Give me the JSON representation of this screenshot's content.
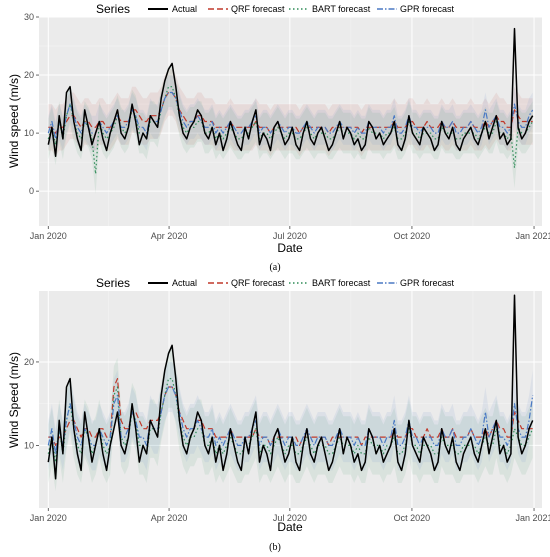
{
  "colors": {
    "actual": "#000000",
    "qrf": "#c0392b",
    "bart": "#2e8b57",
    "gpr": "#4a79c4",
    "panel_bg": "#ebebeb",
    "grid": "#ffffff"
  },
  "legend": {
    "title": "Series",
    "items": [
      {
        "label": "Actual",
        "color": "#000000",
        "dash": "solid"
      },
      {
        "label": "QRF forecast",
        "color": "#c0392b",
        "dash": "longdash"
      },
      {
        "label": "BART forecast",
        "color": "#2e8b57",
        "dash": "dotted"
      },
      {
        "label": "GPR forecast",
        "color": "#4a79c4",
        "dash": "dashdot"
      }
    ]
  },
  "chart_data": [
    {
      "type": "line",
      "panel": "(a)",
      "caption": "(a)",
      "xlabel": "Date",
      "ylabel": "Wind speed (m/s)",
      "x_ticks": [
        "Jan 2020",
        "Apr 2020",
        "Jul 2020",
        "Oct 2020",
        "Jan 2021"
      ],
      "y_ticks": [
        0,
        10,
        20,
        30
      ],
      "xlim": [
        "2019-12-25",
        "2021-01-07"
      ],
      "ylim": [
        -6,
        30
      ],
      "x_range_dates": [
        "2020-01-01",
        "2020-12-31"
      ],
      "bands": [
        "qrf",
        "bart",
        "gpr"
      ],
      "series": [
        {
          "name": "Actual",
          "values": [
            8,
            11,
            6,
            13,
            9,
            17,
            18,
            12,
            9,
            7,
            14,
            11,
            8,
            10,
            12,
            9,
            7,
            10,
            12,
            14,
            10,
            9,
            11,
            15,
            12,
            8,
            10,
            9,
            13,
            12,
            11,
            16,
            19,
            21,
            22,
            18,
            13,
            10,
            9,
            11,
            12,
            14,
            13,
            10,
            9,
            11,
            8,
            10,
            7,
            9,
            12,
            10,
            8,
            7,
            11,
            9,
            12,
            14,
            8,
            10,
            9,
            7,
            11,
            12,
            10,
            8,
            9,
            11,
            8,
            7,
            10,
            12,
            9,
            8,
            10,
            11,
            9,
            7,
            8,
            10,
            12,
            9,
            11,
            10,
            8,
            9,
            7,
            8,
            12,
            11,
            9,
            10,
            8,
            9,
            10,
            12,
            8,
            7,
            9,
            13,
            10,
            9,
            8,
            11,
            10,
            9,
            7,
            8,
            12,
            10,
            9,
            11,
            8,
            7,
            9,
            10,
            11,
            9,
            8,
            10,
            12,
            9,
            11,
            13,
            9,
            10,
            8,
            9,
            28,
            11,
            9,
            10,
            12,
            13
          ]
        },
        {
          "name": "QRF forecast",
          "values": [
            11,
            11,
            10,
            11,
            11,
            12,
            13,
            13,
            12,
            11,
            12,
            12,
            11,
            11,
            12,
            12,
            11,
            11,
            12,
            13,
            12,
            12,
            12,
            14,
            14,
            13,
            12,
            12,
            13,
            13,
            13,
            14,
            16,
            17,
            17,
            16,
            14,
            13,
            12,
            12,
            12,
            13,
            13,
            12,
            12,
            12,
            11,
            11,
            11,
            11,
            12,
            11,
            11,
            11,
            11,
            11,
            11,
            12,
            11,
            11,
            11,
            10,
            11,
            11,
            11,
            11,
            11,
            11,
            11,
            10,
            11,
            11,
            11,
            11,
            11,
            11,
            11,
            10,
            11,
            11,
            11,
            11,
            11,
            11,
            11,
            11,
            10,
            11,
            11,
            11,
            11,
            11,
            11,
            11,
            11,
            12,
            11,
            11,
            11,
            12,
            12,
            11,
            11,
            11,
            12,
            11,
            11,
            11,
            12,
            11,
            11,
            12,
            11,
            11,
            11,
            11,
            12,
            11,
            11,
            11,
            12,
            11,
            12,
            13,
            12,
            12,
            11,
            11,
            14,
            13,
            12,
            12,
            12,
            12
          ]
        },
        {
          "name": "BART forecast",
          "values": [
            9,
            11,
            8,
            12,
            9,
            13,
            15,
            12,
            10,
            9,
            12,
            11,
            9,
            3,
            12,
            10,
            9,
            10,
            11,
            13,
            11,
            10,
            11,
            14,
            13,
            10,
            10,
            9,
            12,
            12,
            11,
            14,
            16,
            18,
            18,
            16,
            13,
            11,
            10,
            11,
            11,
            12,
            12,
            10,
            10,
            11,
            9,
            10,
            9,
            10,
            11,
            10,
            9,
            9,
            10,
            10,
            11,
            12,
            9,
            10,
            10,
            9,
            10,
            11,
            10,
            9,
            10,
            10,
            9,
            9,
            10,
            11,
            10,
            9,
            10,
            10,
            10,
            9,
            9,
            10,
            11,
            10,
            10,
            10,
            9,
            10,
            9,
            9,
            11,
            10,
            10,
            10,
            9,
            10,
            10,
            11,
            9,
            9,
            10,
            12,
            10,
            10,
            9,
            10,
            10,
            10,
            9,
            9,
            11,
            10,
            10,
            10,
            9,
            9,
            10,
            10,
            10,
            10,
            9,
            10,
            11,
            10,
            10,
            12,
            10,
            10,
            9,
            10,
            4,
            11,
            10,
            10,
            11,
            12
          ]
        },
        {
          "name": "GPR forecast",
          "values": [
            10,
            12,
            9,
            12,
            10,
            13,
            15,
            13,
            11,
            10,
            12,
            11,
            10,
            10,
            12,
            11,
            10,
            11,
            12,
            13,
            11,
            11,
            12,
            14,
            13,
            11,
            11,
            10,
            13,
            12,
            12,
            14,
            16,
            17,
            17,
            16,
            14,
            12,
            11,
            12,
            12,
            13,
            12,
            11,
            11,
            12,
            10,
            11,
            10,
            11,
            12,
            11,
            10,
            10,
            11,
            11,
            12,
            13,
            10,
            11,
            11,
            10,
            11,
            12,
            11,
            10,
            11,
            11,
            10,
            10,
            11,
            12,
            11,
            10,
            11,
            11,
            11,
            10,
            10,
            11,
            12,
            11,
            11,
            11,
            10,
            11,
            10,
            10,
            12,
            11,
            11,
            11,
            10,
            11,
            11,
            13,
            10,
            10,
            11,
            13,
            11,
            11,
            10,
            11,
            11,
            11,
            10,
            10,
            12,
            11,
            11,
            12,
            10,
            10,
            11,
            11,
            12,
            11,
            10,
            11,
            14,
            11,
            12,
            13,
            11,
            11,
            10,
            11,
            15,
            12,
            11,
            11,
            13,
            14
          ]
        }
      ]
    },
    {
      "type": "line",
      "panel": "(b)",
      "caption": "(b)",
      "xlabel": "Date",
      "ylabel": "Wind Speed (m/s)",
      "x_ticks": [
        "Jan 2020",
        "Apr 2020",
        "Jul 2020",
        "Oct 2020",
        "Jan 2021"
      ],
      "y_ticks": [
        10,
        20
      ],
      "xlim": [
        "2019-12-25",
        "2021-01-07"
      ],
      "ylim": [
        2.5,
        28.5
      ],
      "x_range_dates": [
        "2020-01-01",
        "2020-12-31"
      ],
      "bands": [
        "bart",
        "gpr"
      ],
      "series": [
        {
          "name": "Actual",
          "values": [
            8,
            11,
            6,
            13,
            9,
            17,
            18,
            12,
            9,
            7,
            14,
            11,
            8,
            10,
            12,
            9,
            7,
            10,
            12,
            14,
            10,
            9,
            11,
            15,
            12,
            8,
            10,
            9,
            13,
            12,
            11,
            16,
            19,
            21,
            22,
            18,
            13,
            10,
            9,
            11,
            12,
            14,
            13,
            10,
            9,
            11,
            8,
            10,
            7,
            9,
            12,
            10,
            8,
            7,
            11,
            9,
            12,
            14,
            8,
            10,
            9,
            7,
            11,
            12,
            10,
            8,
            9,
            11,
            8,
            7,
            10,
            12,
            9,
            8,
            10,
            11,
            9,
            7,
            8,
            10,
            12,
            9,
            11,
            10,
            8,
            9,
            7,
            8,
            12,
            11,
            9,
            10,
            8,
            9,
            10,
            12,
            8,
            7,
            9,
            13,
            10,
            9,
            8,
            11,
            10,
            9,
            7,
            8,
            12,
            10,
            9,
            11,
            8,
            7,
            9,
            10,
            11,
            9,
            8,
            10,
            12,
            9,
            11,
            13,
            9,
            10,
            8,
            9,
            28,
            11,
            9,
            10,
            12,
            13
          ]
        },
        {
          "name": "QRF forecast",
          "values": [
            11,
            11,
            10,
            11,
            11,
            12,
            13,
            13,
            12,
            11,
            12,
            12,
            11,
            11,
            12,
            12,
            11,
            11,
            17,
            18,
            13,
            12,
            12,
            14,
            14,
            13,
            12,
            12,
            13,
            13,
            13,
            14,
            16,
            17,
            17,
            16,
            14,
            13,
            12,
            12,
            12,
            13,
            13,
            12,
            12,
            12,
            11,
            11,
            11,
            11,
            12,
            11,
            11,
            11,
            11,
            11,
            11,
            12,
            11,
            11,
            11,
            10,
            11,
            11,
            11,
            11,
            11,
            11,
            11,
            10,
            11,
            11,
            11,
            11,
            11,
            11,
            11,
            10,
            11,
            11,
            11,
            11,
            11,
            11,
            11,
            11,
            10,
            11,
            11,
            11,
            11,
            11,
            11,
            11,
            11,
            12,
            11,
            11,
            11,
            12,
            12,
            11,
            11,
            11,
            12,
            11,
            11,
            11,
            12,
            11,
            11,
            12,
            11,
            11,
            11,
            11,
            12,
            11,
            11,
            11,
            12,
            11,
            12,
            13,
            12,
            12,
            11,
            11,
            14,
            13,
            12,
            12,
            12,
            12
          ]
        },
        {
          "name": "BART forecast",
          "values": [
            9,
            11,
            8,
            12,
            9,
            13,
            15,
            12,
            10,
            9,
            12,
            11,
            9,
            10,
            12,
            10,
            9,
            10,
            16,
            17,
            11,
            10,
            11,
            14,
            13,
            10,
            10,
            9,
            12,
            12,
            11,
            14,
            16,
            18,
            18,
            16,
            13,
            11,
            10,
            11,
            11,
            12,
            12,
            10,
            10,
            11,
            9,
            10,
            9,
            10,
            11,
            10,
            9,
            9,
            10,
            10,
            11,
            12,
            9,
            10,
            10,
            9,
            10,
            11,
            10,
            9,
            10,
            10,
            9,
            9,
            10,
            11,
            10,
            9,
            10,
            10,
            10,
            9,
            9,
            10,
            11,
            10,
            10,
            10,
            9,
            10,
            9,
            9,
            11,
            10,
            10,
            10,
            9,
            10,
            10,
            11,
            9,
            9,
            10,
            12,
            10,
            10,
            9,
            10,
            10,
            10,
            9,
            9,
            11,
            10,
            10,
            10,
            9,
            9,
            10,
            10,
            10,
            10,
            9,
            10,
            11,
            10,
            10,
            12,
            10,
            10,
            9,
            10,
            12,
            11,
            10,
            10,
            11,
            12
          ]
        },
        {
          "name": "GPR forecast",
          "values": [
            10,
            12,
            9,
            12,
            10,
            13,
            15,
            13,
            11,
            10,
            12,
            11,
            10,
            10,
            12,
            11,
            10,
            11,
            15,
            16,
            11,
            11,
            12,
            14,
            13,
            11,
            11,
            10,
            13,
            12,
            12,
            14,
            16,
            17,
            17,
            16,
            14,
            12,
            11,
            12,
            12,
            13,
            12,
            11,
            11,
            12,
            10,
            11,
            10,
            11,
            12,
            11,
            10,
            10,
            11,
            11,
            12,
            13,
            10,
            11,
            11,
            10,
            11,
            12,
            11,
            10,
            11,
            11,
            10,
            10,
            11,
            12,
            11,
            10,
            11,
            11,
            11,
            10,
            10,
            11,
            12,
            11,
            11,
            11,
            10,
            11,
            10,
            10,
            12,
            11,
            11,
            11,
            10,
            11,
            11,
            13,
            10,
            10,
            11,
            13,
            11,
            11,
            10,
            11,
            11,
            11,
            10,
            10,
            12,
            11,
            11,
            12,
            10,
            10,
            11,
            11,
            12,
            11,
            10,
            11,
            14,
            11,
            12,
            13,
            11,
            11,
            10,
            11,
            15,
            12,
            11,
            11,
            13,
            16
          ]
        }
      ]
    }
  ]
}
